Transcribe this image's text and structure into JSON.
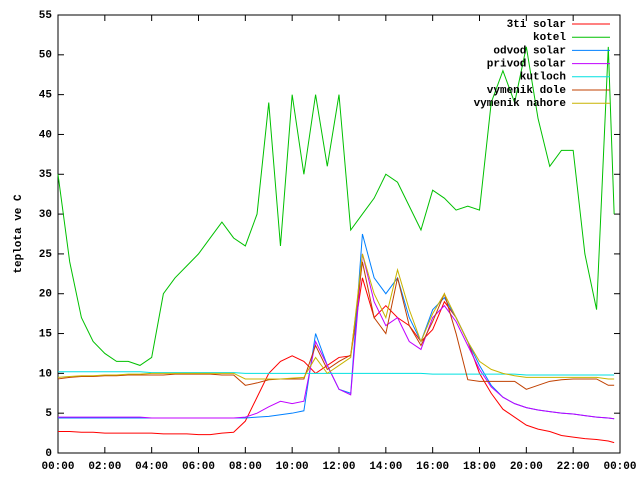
{
  "chart_data": {
    "type": "line",
    "ylabel": "teplota ve C",
    "x": [
      0,
      0.5,
      1,
      1.5,
      2,
      2.5,
      3,
      3.5,
      4,
      4.5,
      5,
      5.5,
      6,
      6.5,
      7,
      7.5,
      8,
      8.5,
      9,
      9.5,
      10,
      10.5,
      11,
      11.5,
      12,
      12.5,
      13,
      13.5,
      14,
      14.5,
      15,
      15.5,
      16,
      16.5,
      17,
      17.5,
      18,
      18.5,
      19,
      19.5,
      20,
      20.5,
      21,
      21.5,
      22,
      22.5,
      23,
      23.5,
      23.75
    ],
    "xlim": [
      0,
      24
    ],
    "xticks": [
      {
        "value": 0,
        "label": "00:00"
      },
      {
        "value": 2,
        "label": "02:00"
      },
      {
        "value": 4,
        "label": "04:00"
      },
      {
        "value": 6,
        "label": "06:00"
      },
      {
        "value": 8,
        "label": "08:00"
      },
      {
        "value": 10,
        "label": "10:00"
      },
      {
        "value": 12,
        "label": "12:00"
      },
      {
        "value": 14,
        "label": "14:00"
      },
      {
        "value": 16,
        "label": "16:00"
      },
      {
        "value": 18,
        "label": "18:00"
      },
      {
        "value": 20,
        "label": "20:00"
      },
      {
        "value": 22,
        "label": "22:00"
      },
      {
        "value": 24,
        "label": "00:00"
      }
    ],
    "ylim": [
      0,
      55
    ],
    "yticks": [
      0,
      5,
      10,
      15,
      20,
      25,
      30,
      35,
      40,
      45,
      50,
      55
    ],
    "legend": "top-right",
    "series": [
      {
        "name": "3ti solar",
        "color": "#ff0000",
        "values": [
          2.7,
          2.7,
          2.6,
          2.6,
          2.5,
          2.5,
          2.5,
          2.5,
          2.5,
          2.4,
          2.4,
          2.4,
          2.3,
          2.3,
          2.5,
          2.6,
          4,
          7,
          10,
          11.5,
          12.2,
          11.5,
          10,
          11,
          12,
          12.2,
          22,
          17,
          18.5,
          17,
          16,
          14,
          15.5,
          19,
          17,
          14,
          10,
          7.5,
          5.5,
          4.5,
          3.5,
          3,
          2.7,
          2.2,
          2,
          1.8,
          1.7,
          1.5,
          1.3
        ]
      },
      {
        "name": "kotel",
        "color": "#00c000",
        "values": [
          35,
          24,
          17,
          14,
          12.5,
          11.5,
          11.5,
          11,
          12,
          20,
          22,
          23.5,
          25,
          27,
          29,
          27,
          26,
          30,
          44,
          26,
          45,
          35,
          45,
          36,
          45,
          28,
          30,
          32,
          35,
          34,
          31,
          28,
          33,
          32,
          30.5,
          31,
          30.5,
          44,
          48,
          44,
          51,
          42,
          36,
          38,
          38,
          25,
          18,
          51,
          30
        ]
      },
      {
        "name": "odvod solar",
        "color": "#0080ff",
        "values": [
          4.4,
          4.4,
          4.4,
          4.4,
          4.4,
          4.4,
          4.4,
          4.4,
          4.4,
          4.4,
          4.4,
          4.4,
          4.4,
          4.4,
          4.4,
          4.4,
          4.4,
          4.5,
          4.6,
          4.8,
          5,
          5.3,
          15,
          11,
          8,
          7.5,
          27.5,
          22,
          20,
          22,
          17,
          14,
          18,
          19.5,
          17,
          14,
          11,
          8.5,
          7,
          6.2,
          5.7,
          5.4,
          5.2,
          5,
          4.9,
          4.7,
          4.5,
          4.4,
          4.3
        ]
      },
      {
        "name": "privod solar",
        "color": "#c000ff",
        "values": [
          4.5,
          4.5,
          4.5,
          4.5,
          4.5,
          4.5,
          4.5,
          4.5,
          4.4,
          4.4,
          4.4,
          4.4,
          4.4,
          4.4,
          4.4,
          4.4,
          4.5,
          5,
          5.8,
          6.5,
          6.2,
          6.5,
          14,
          11,
          8,
          7.3,
          25,
          19,
          16,
          17,
          14,
          13,
          17,
          18.5,
          16.5,
          13.5,
          10.5,
          8.3,
          7,
          6.2,
          5.7,
          5.4,
          5.2,
          5,
          4.9,
          4.7,
          4.5,
          4.4,
          4.3
        ]
      },
      {
        "name": "kutloch",
        "color": "#00e0e0",
        "values": [
          10.2,
          10.2,
          10.2,
          10.2,
          10.2,
          10.2,
          10.2,
          10.2,
          10.1,
          10.1,
          10.1,
          10.1,
          10.1,
          10.1,
          10.1,
          10.1,
          10,
          10,
          10,
          10,
          10,
          10,
          10,
          10,
          10,
          10,
          10,
          10,
          10,
          10,
          10,
          10,
          9.9,
          9.9,
          9.9,
          9.9,
          9.9,
          9.9,
          9.9,
          9.9,
          9.8,
          9.8,
          9.8,
          9.8,
          9.8,
          9.8,
          9.8,
          9.8,
          9.8
        ]
      },
      {
        "name": "vymenik dole",
        "color": "#c04000",
        "values": [
          9.3,
          9.5,
          9.6,
          9.6,
          9.7,
          9.7,
          9.8,
          9.8,
          9.8,
          9.8,
          9.9,
          9.9,
          9.9,
          9.9,
          9.8,
          9.8,
          8.5,
          8.8,
          9.2,
          9.3,
          9.3,
          9.3,
          13.5,
          10.5,
          11.5,
          12.3,
          24,
          17,
          15,
          22,
          16,
          13.5,
          16.5,
          20,
          15,
          9.2,
          9,
          9,
          9,
          9,
          8,
          8.5,
          9,
          9.2,
          9.3,
          9.3,
          9.3,
          8.5,
          8.5
        ]
      },
      {
        "name": "vymenik nahore",
        "color": "#c8b400",
        "values": [
          9.5,
          9.6,
          9.7,
          9.7,
          9.8,
          9.8,
          9.9,
          9.9,
          10,
          10,
          10,
          10,
          10,
          10,
          10,
          10,
          9.3,
          9.3,
          9.3,
          9.3,
          9.4,
          9.5,
          12,
          10,
          11,
          12,
          25,
          20,
          17,
          23,
          18,
          14,
          17.5,
          20,
          17,
          14,
          11.5,
          10.5,
          10,
          9.7,
          9.5,
          9.5,
          9.5,
          9.5,
          9.5,
          9.5,
          9.5,
          9.3,
          9.3
        ]
      }
    ]
  }
}
